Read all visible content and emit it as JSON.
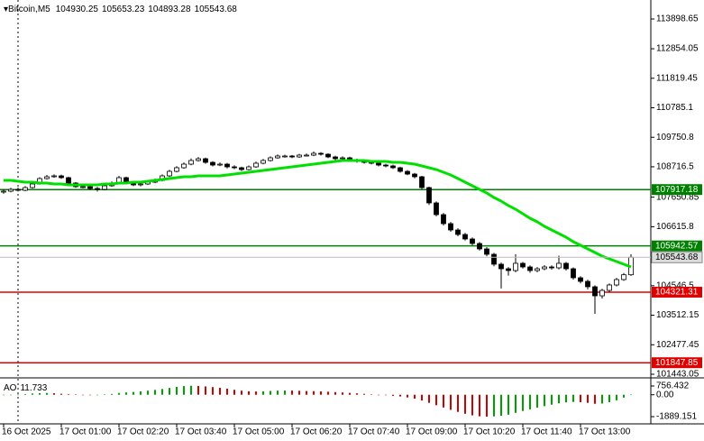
{
  "chart_data": [
    {
      "type": "candlestick",
      "symbol": "Bitcoin,M5",
      "categories": [
        "16 Oct 2025",
        null,
        null,
        null,
        null,
        null,
        null,
        null,
        "17 Oct 01:00",
        null,
        null,
        null,
        null,
        null,
        null,
        null,
        "17 Oct 02:20",
        null,
        null,
        null,
        null,
        null,
        null,
        null,
        "17 Oct 03:40",
        null,
        null,
        null,
        null,
        null,
        null,
        null,
        "17 Oct 05:00",
        null,
        null,
        null,
        null,
        null,
        null,
        null,
        "17 Oct 06:20",
        null,
        null,
        null,
        null,
        null,
        null,
        null,
        "17 Oct 07:40",
        null,
        null,
        null,
        null,
        null,
        null,
        null,
        "17 Oct 09:00",
        null,
        null,
        null,
        null,
        null,
        null,
        null,
        "17 Oct 10:20",
        null,
        null,
        null,
        null,
        null,
        null,
        null,
        "17 Oct 11:40",
        null,
        null,
        null,
        null,
        null,
        null,
        null,
        "17 Oct 13:00",
        null,
        null,
        null,
        null,
        null,
        null,
        null
      ],
      "open": [
        107830,
        107861,
        107924,
        107892,
        107987,
        108114,
        108303,
        108367,
        108398,
        108335,
        108145,
        108019,
        108019,
        107956,
        107924,
        108050,
        108145,
        108335,
        108177,
        108082,
        108114,
        108177,
        108240,
        108398,
        108556,
        108683,
        108809,
        108936,
        108999,
        108872,
        108777,
        108809,
        108714,
        108683,
        108619,
        108714,
        108841,
        108936,
        109030,
        109094,
        109094,
        109062,
        109125,
        109125,
        109188,
        109157,
        109062,
        108999,
        109030,
        108967,
        108904,
        108872,
        108841,
        108777,
        108746,
        108683,
        108556,
        108461,
        108367,
        107987,
        107450,
        107039,
        106723,
        106501,
        106343,
        106185,
        106027,
        105837,
        105648,
        105300,
        105142,
        105079,
        105332,
        105205,
        105079,
        105142,
        105205,
        105174,
        105332,
        105142,
        104826,
        104699,
        104510,
        104193,
        104383,
        104573,
        104763,
        104930.25
      ],
      "high": [
        107920,
        107980,
        107990,
        108040,
        108170,
        108350,
        108430,
        108450,
        108440,
        108370,
        108180,
        108080,
        108060,
        108010,
        108090,
        108200,
        108400,
        108370,
        108210,
        108170,
        108230,
        108300,
        108450,
        108610,
        108740,
        108870,
        109010,
        109060,
        109040,
        108910,
        108870,
        108850,
        108770,
        108720,
        108760,
        108900,
        108990,
        109080,
        109150,
        109140,
        109130,
        109170,
        109180,
        109250,
        109230,
        109190,
        109100,
        109080,
        109070,
        109000,
        108950,
        108910,
        108880,
        108820,
        108790,
        108720,
        108600,
        108500,
        108400,
        108020,
        107500,
        107100,
        106780,
        106560,
        106400,
        106240,
        106080,
        105900,
        105700,
        105360,
        105200,
        105650,
        105380,
        105260,
        105200,
        105270,
        105260,
        105600,
        105380,
        105190,
        104880,
        104760,
        104560,
        104440,
        104630,
        104820,
        104990,
        105653.23
      ],
      "low": [
        107770,
        107820,
        107850,
        107860,
        107950,
        108090,
        108270,
        108330,
        108290,
        108110,
        107980,
        107960,
        107910,
        107850,
        107890,
        108020,
        108120,
        108130,
        108040,
        108030,
        108080,
        108140,
        108210,
        108360,
        108520,
        108650,
        108770,
        108900,
        108820,
        108730,
        108740,
        108660,
        108630,
        108570,
        108590,
        108680,
        108800,
        108900,
        109000,
        109040,
        109020,
        109030,
        109080,
        109090,
        109110,
        109020,
        108950,
        108960,
        108920,
        108860,
        108830,
        108800,
        108730,
        108700,
        108640,
        108510,
        108420,
        108310,
        107940,
        107380,
        106980,
        106660,
        106440,
        106280,
        106130,
        105960,
        105780,
        105580,
        105230,
        104450,
        104900,
        105020,
        105150,
        105000,
        105020,
        105090,
        105110,
        105120,
        105080,
        104760,
        104630,
        104420,
        103560,
        104100,
        104320,
        104520,
        104720,
        104893.28
      ],
      "close": [
        107861,
        107924,
        107892,
        107987,
        108114,
        108303,
        108367,
        108398,
        108335,
        108145,
        108019,
        108019,
        107956,
        107924,
        108050,
        108145,
        108335,
        108177,
        108082,
        108114,
        108177,
        108240,
        108398,
        108556,
        108683,
        108809,
        108936,
        108999,
        108872,
        108777,
        108809,
        108714,
        108683,
        108619,
        108714,
        108841,
        108936,
        109030,
        109094,
        109094,
        109062,
        109125,
        109125,
        109188,
        109157,
        109062,
        108999,
        109030,
        108967,
        108904,
        108872,
        108841,
        108777,
        108746,
        108683,
        108556,
        108461,
        108367,
        107987,
        107450,
        107039,
        106723,
        106501,
        106343,
        106185,
        106027,
        105837,
        105648,
        105300,
        105142,
        105079,
        105332,
        105205,
        105079,
        105142,
        105205,
        105174,
        105332,
        105142,
        104826,
        104699,
        104510,
        104193,
        104383,
        104573,
        104763,
        104930.25,
        105543.68
      ],
      "up_color": "#ffffff",
      "down_color": "#000000",
      "ma": {
        "color": "#00e000",
        "values": [
          108240,
          108240,
          108208,
          108177,
          108177,
          108145,
          108145,
          108114,
          108114,
          108082,
          108082,
          108082,
          108082,
          108082,
          108114,
          108114,
          108145,
          108145,
          108177,
          108177,
          108208,
          108240,
          108272,
          108303,
          108335,
          108367,
          108367,
          108398,
          108398,
          108398,
          108398,
          108430,
          108461,
          108493,
          108524,
          108556,
          108588,
          108619,
          108651,
          108683,
          108714,
          108746,
          108777,
          108809,
          108841,
          108872,
          108904,
          108936,
          108936,
          108936,
          108936,
          108904,
          108904,
          108904,
          108872,
          108872,
          108841,
          108809,
          108746,
          108683,
          108619,
          108524,
          108430,
          108303,
          108177,
          108050,
          107924,
          107797,
          107639,
          107512,
          107355,
          107228,
          107070,
          106912,
          106786,
          106628,
          106501,
          106375,
          106248,
          106090,
          105964,
          105837,
          105711,
          105584,
          105489,
          105395,
          105300,
          105205
        ]
      },
      "levels": [
        {
          "value": 107917.18,
          "color": "#008000"
        },
        {
          "value": 105942.57,
          "color": "#008000"
        },
        {
          "value": 104321.31,
          "color": "#e00000"
        },
        {
          "value": 101847.85,
          "color": "#e00000"
        }
      ],
      "ylim": [
        101443.05,
        114563
      ],
      "yticks": [
        113898.65,
        112854.05,
        111819.45,
        110785.1,
        109750.8,
        108716.5,
        107650.85,
        106615.8,
        104546.5,
        103512.15,
        102477.45,
        101443.05
      ]
    },
    {
      "type": "bar",
      "name": "AO",
      "values": [
        -40,
        -20,
        10,
        60,
        110,
        140,
        150,
        130,
        90,
        50,
        20,
        -10,
        -30,
        -20,
        20,
        70,
        150,
        200,
        240,
        290,
        350,
        420,
        500,
        590,
        680,
        750,
        780,
        760,
        720,
        660,
        600,
        520,
        430,
        350,
        300,
        280,
        300,
        330,
        360,
        370,
        360,
        340,
        320,
        310,
        290,
        260,
        230,
        200,
        160,
        120,
        80,
        40,
        0,
        -40,
        -90,
        -150,
        -230,
        -340,
        -500,
        -700,
        -900,
        -1100,
        -1300,
        -1480,
        -1640,
        -1780,
        -1860,
        -1889.151,
        -1870,
        -1820,
        -1720,
        -1560,
        -1400,
        -1260,
        -1120,
        -980,
        -860,
        -740,
        -660,
        -620,
        -640,
        -700,
        -780,
        -760,
        -640,
        -480,
        -250,
        11.733
      ],
      "up_color": "#00a000",
      "down_color": "#d00000",
      "ylim": [
        -2512,
        1379
      ],
      "yticks": [
        756.432,
        {
          "value": 0,
          "label": "0.00"
        },
        -1889.151
      ]
    }
  ]
}
